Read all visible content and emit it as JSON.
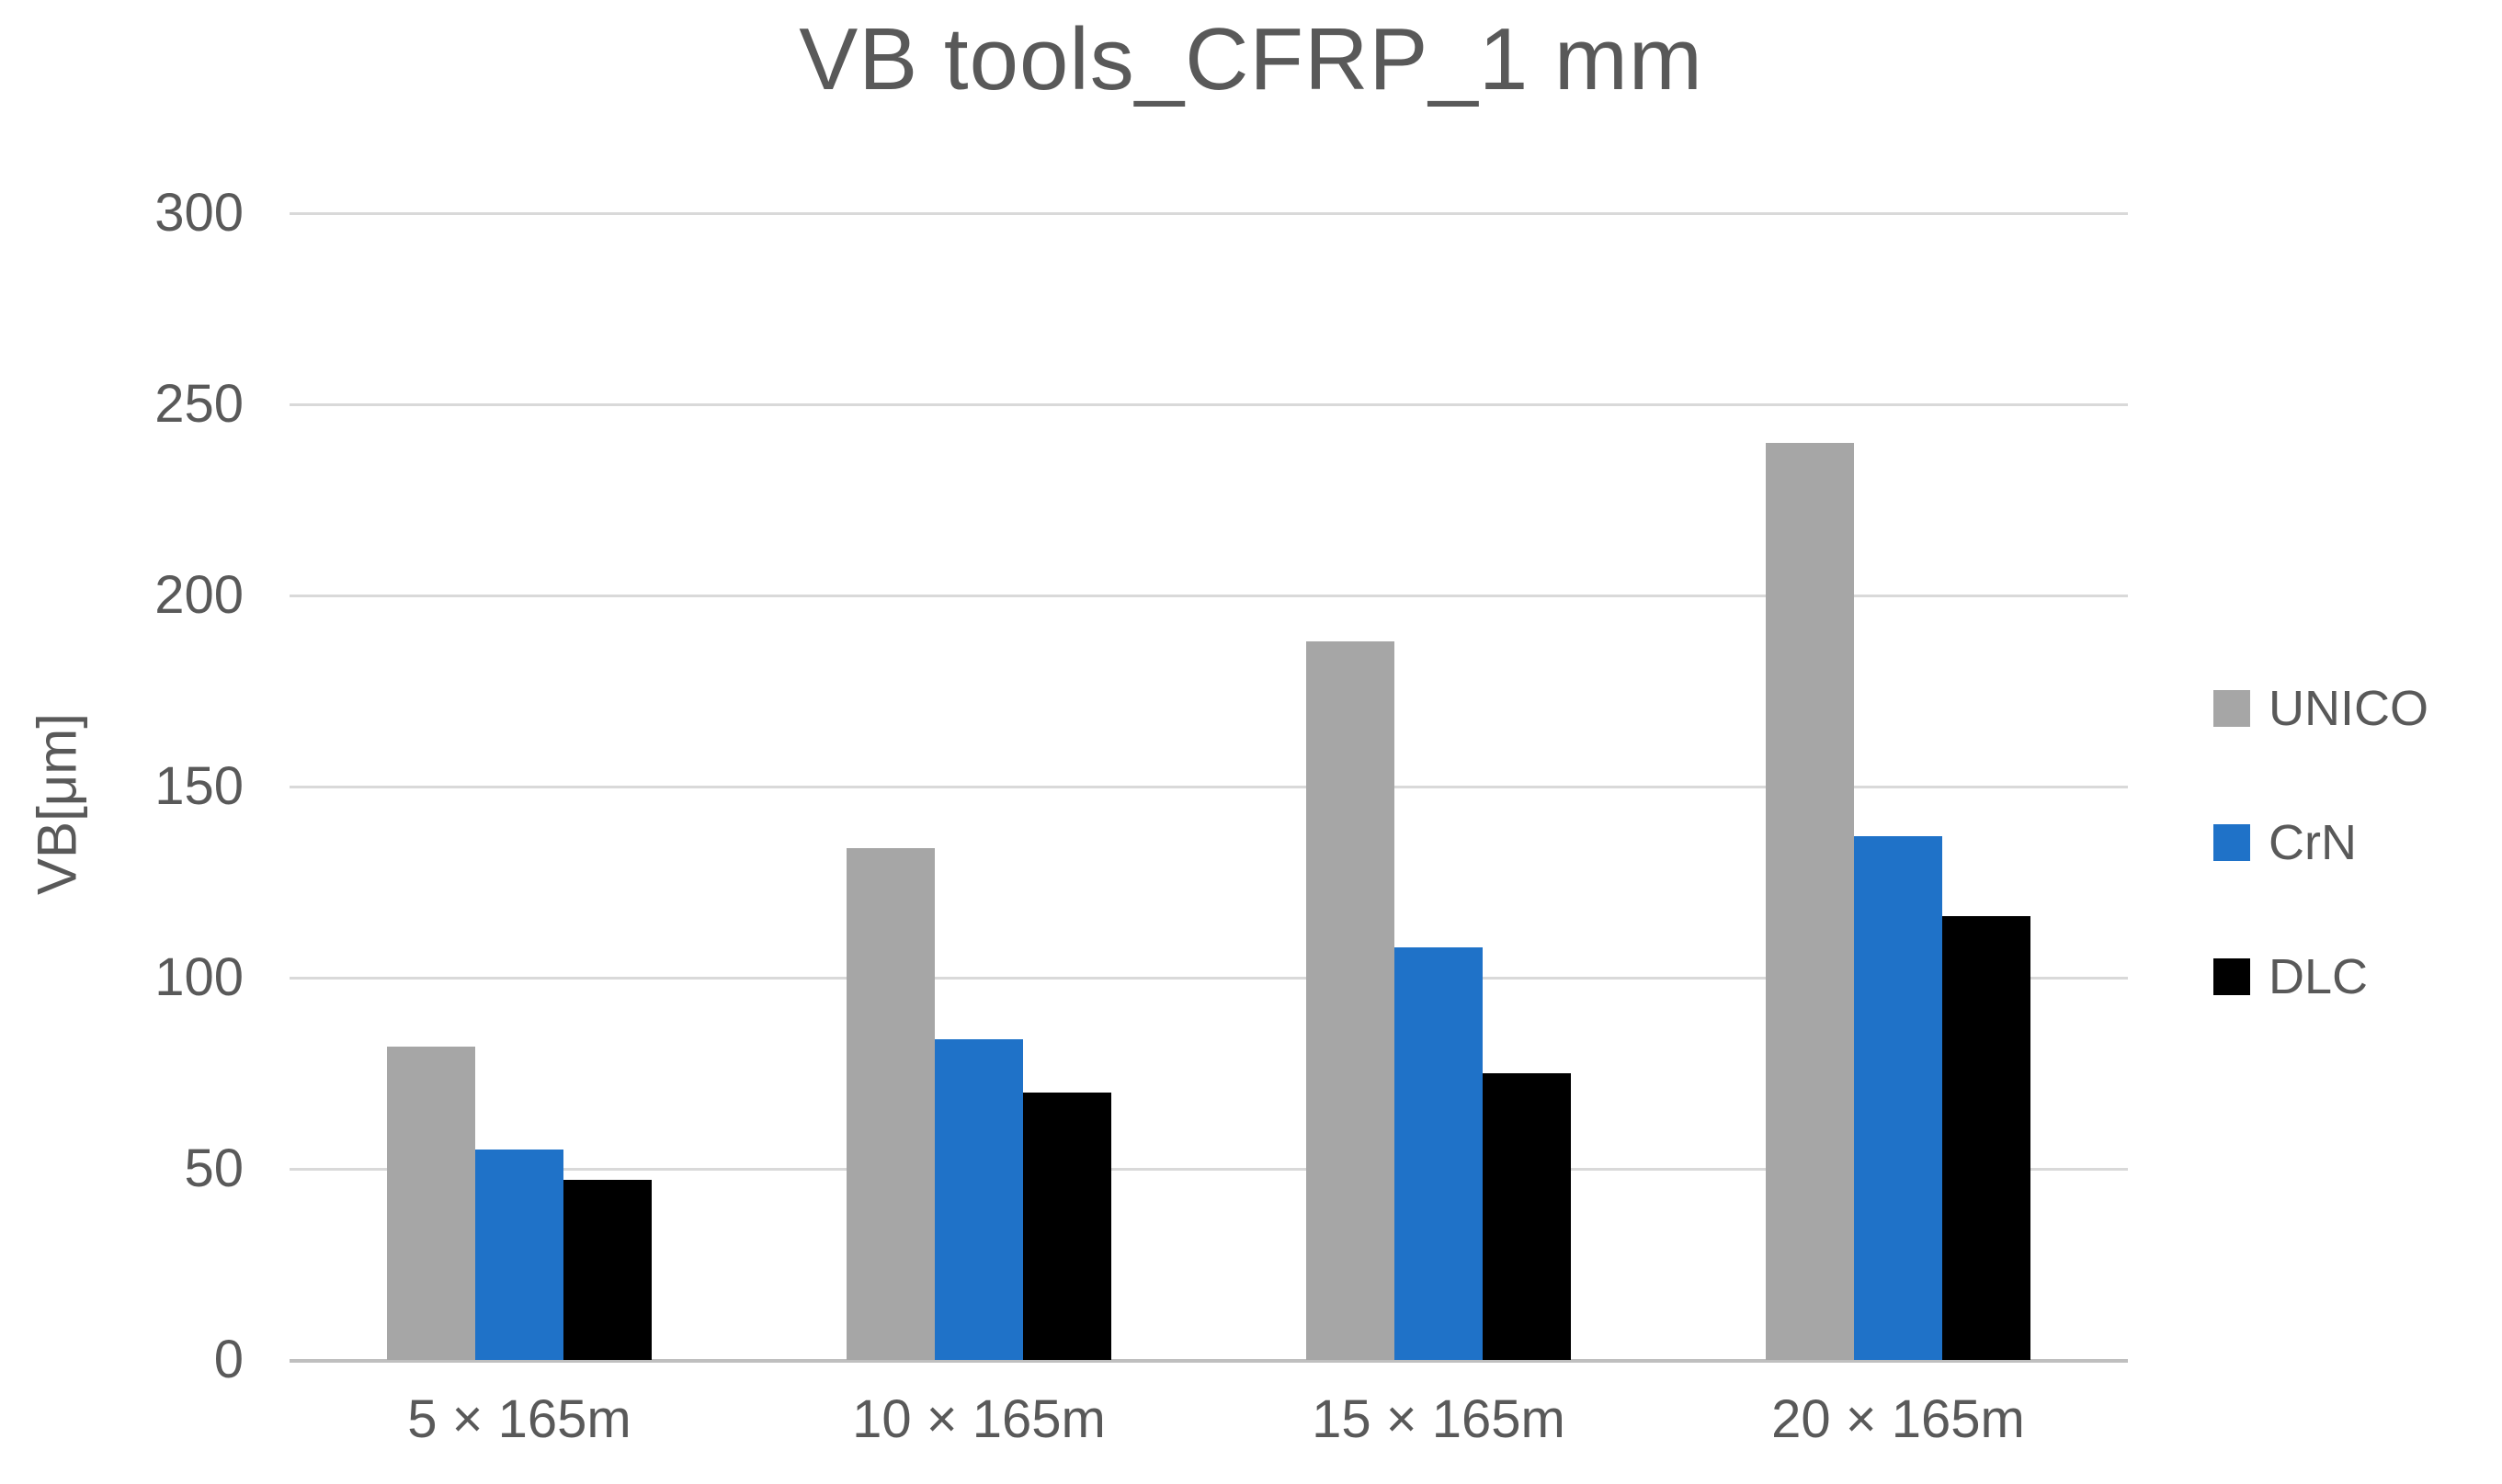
{
  "chart_data": {
    "type": "bar",
    "title": "VB tools_CFRP_1 mm",
    "ylabel": "VB[μm]",
    "xlabel": "",
    "ylim": [
      0,
      300
    ],
    "ytick_step": 50,
    "grid": true,
    "legend_position": "right",
    "categories": [
      "5 × 165m",
      "10 × 165m",
      "15 × 165m",
      "20 × 165m"
    ],
    "series": [
      {
        "name": "UNICO",
        "color": "#a6a6a6",
        "values": [
          82,
          134,
          188,
          240
        ]
      },
      {
        "name": "CrN",
        "color": "#1f72c8",
        "values": [
          55,
          84,
          108,
          137
        ]
      },
      {
        "name": "DLC",
        "color": "#000000",
        "values": [
          47,
          70,
          75,
          116
        ]
      }
    ],
    "colors": {
      "text": "#595959",
      "gridline": "#d9d9d9",
      "axis_line": "#bfbfbf",
      "background": "#ffffff"
    }
  }
}
